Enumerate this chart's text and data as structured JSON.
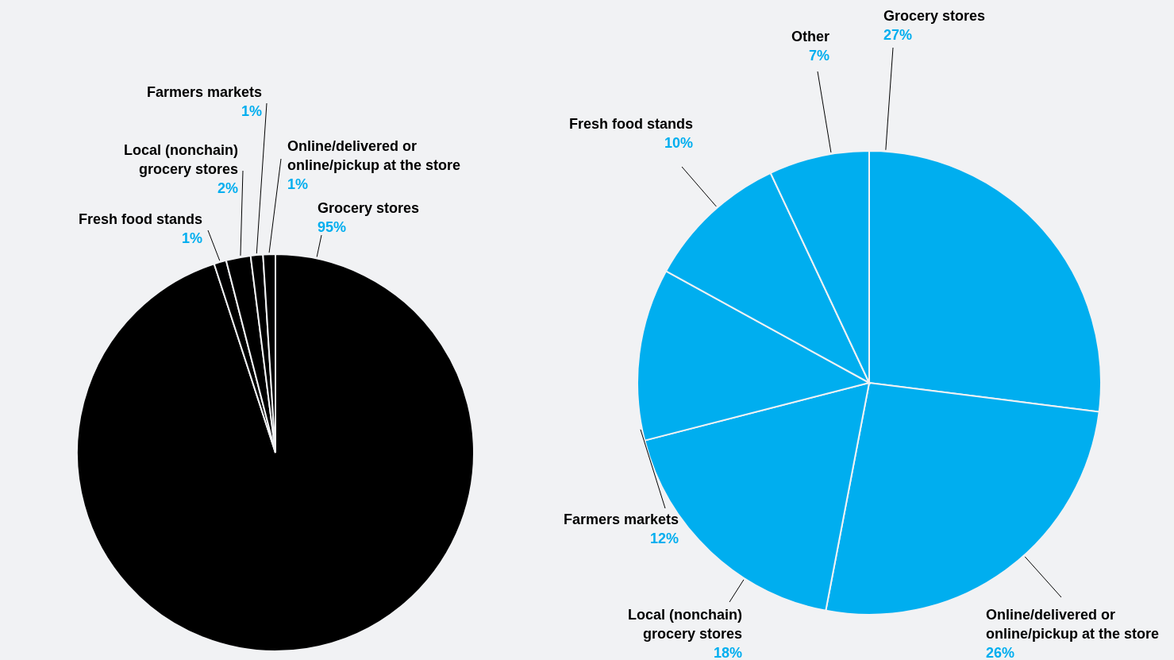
{
  "chart_data": [
    {
      "type": "pie",
      "categories": [
        "Grocery stores",
        "Fresh food stands",
        "Local (nonchain) grocery stores",
        "Farmers markets",
        "Online/delivered or online/pickup at the store"
      ],
      "values": [
        95,
        1,
        2,
        1,
        1
      ],
      "value_labels": [
        "95%",
        "1%",
        "2%",
        "1%",
        "1%"
      ],
      "colors": [
        "#000000",
        "#000000",
        "#000000",
        "#000000",
        "#000000"
      ]
    },
    {
      "type": "pie",
      "categories": [
        "Grocery stores",
        "Online/delivered or online/pickup at the store",
        "Local (nonchain) grocery stores",
        "Farmers markets",
        "Fresh food stands",
        "Other"
      ],
      "values": [
        27,
        26,
        18,
        12,
        10,
        7
      ],
      "value_labels": [
        "27%",
        "26%",
        "18%",
        "12%",
        "10%",
        "7%"
      ],
      "colors": [
        "#00aeef",
        "#00aeef",
        "#00aeef",
        "#00aeef",
        "#00aeef",
        "#00aeef"
      ]
    }
  ]
}
